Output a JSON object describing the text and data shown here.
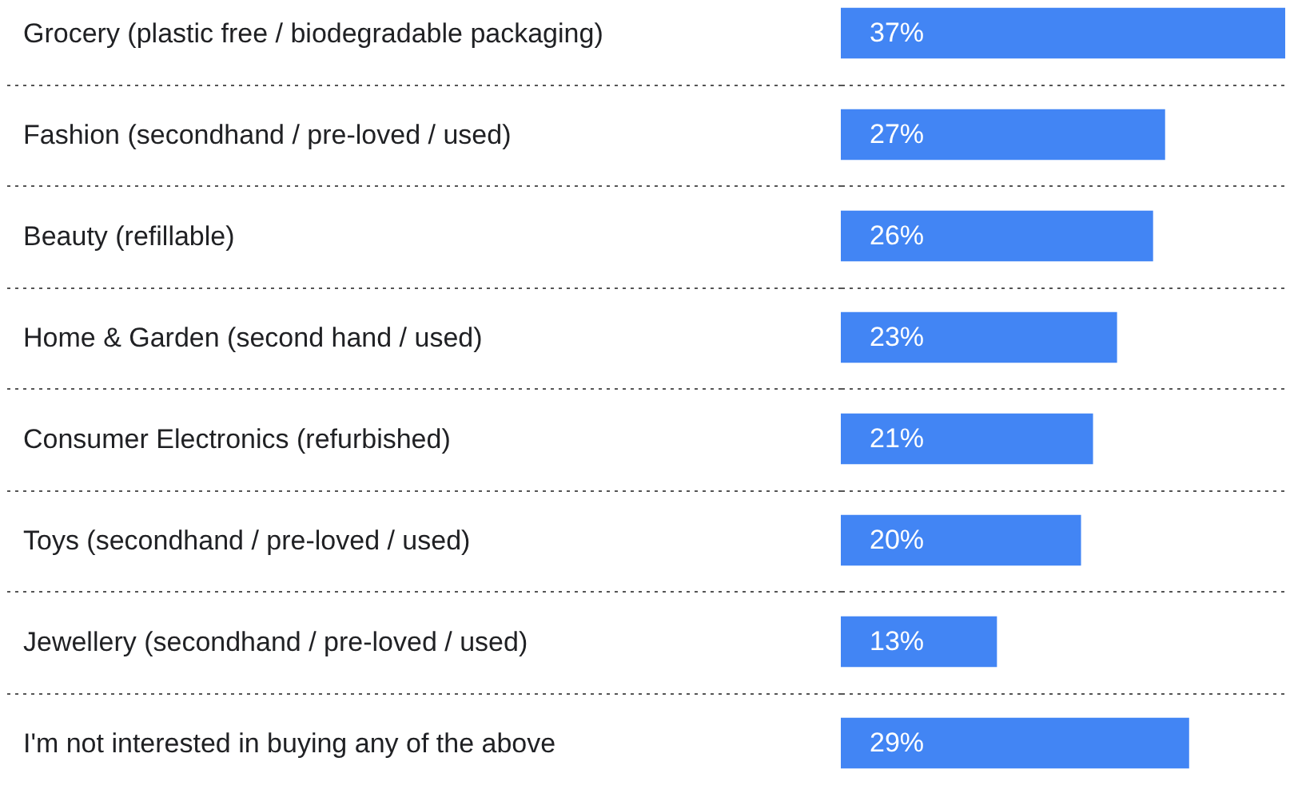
{
  "chart_data": {
    "type": "bar",
    "orientation": "horizontal",
    "grid": "y",
    "tick_labels": "y",
    "categories": [
      "Grocery (plastic free / biodegradable packaging)",
      "Fashion (secondhand / pre-loved / used)",
      "Beauty (refillable)",
      "Home & Garden (second hand / used)",
      "Consumer Electronics (refurbished)",
      "Toys (secondhand / pre-loved / used)",
      "Jewellery (secondhand / pre-loved / used)",
      "I'm not interested in buying any of the above"
    ],
    "values": [
      37,
      27,
      26,
      23,
      21,
      20,
      13,
      29
    ],
    "value_labels": [
      "37%",
      "27%",
      "26%",
      "23%",
      "21%",
      "20%",
      "13%",
      "29%"
    ],
    "color": "#4285f4"
  }
}
